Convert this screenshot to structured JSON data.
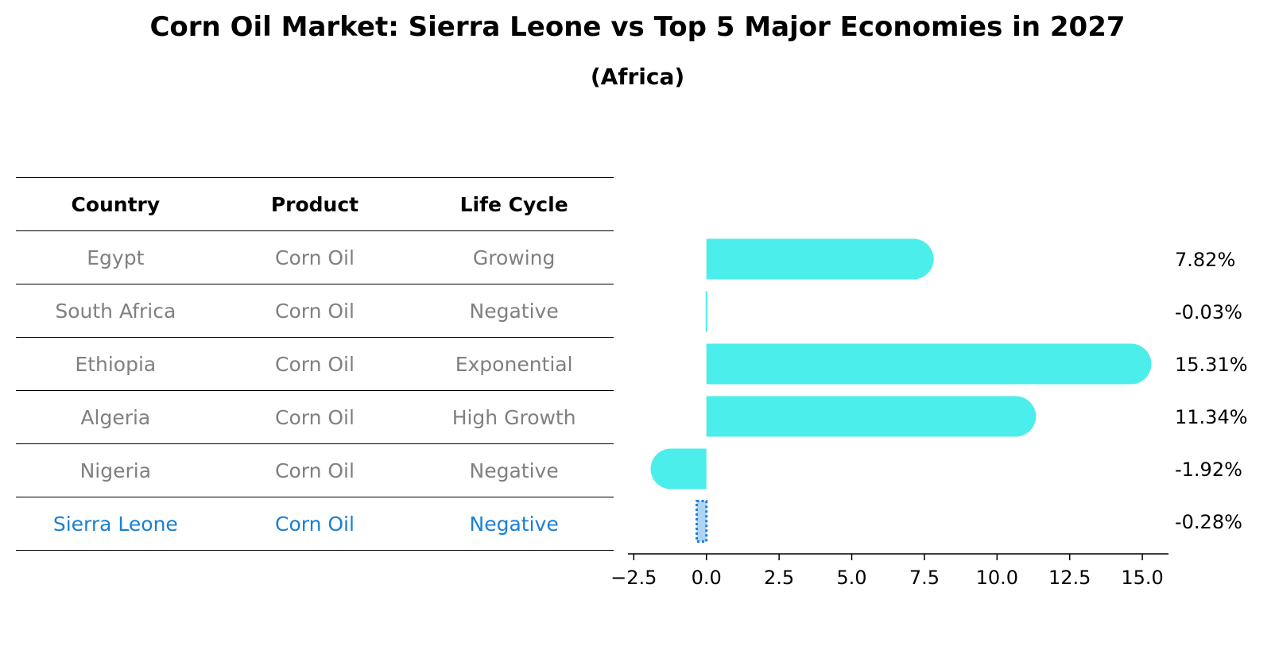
{
  "title": "Corn Oil Market: Sierra Leone vs Top 5 Major Economies in 2027",
  "subtitle": "(Africa)",
  "table": {
    "headers": [
      "Country",
      "Product",
      "Life Cycle"
    ],
    "rows": [
      [
        "Egypt",
        "Corn Oil",
        "Growing"
      ],
      [
        "South Africa",
        "Corn Oil",
        "Negative"
      ],
      [
        "Ethiopia",
        "Corn Oil",
        "Exponential"
      ],
      [
        "Algeria",
        "Corn Oil",
        "High Growth"
      ],
      [
        "Nigeria",
        "Corn Oil",
        "Negative"
      ],
      [
        "Sierra Leone",
        "Corn Oil",
        "Negative"
      ]
    ],
    "highlight_row": 5
  },
  "chart_data": {
    "type": "bar",
    "orientation": "horizontal",
    "categories": [
      "Egypt",
      "South Africa",
      "Ethiopia",
      "Algeria",
      "Nigeria",
      "Sierra Leone"
    ],
    "values": [
      7.82,
      -0.03,
      15.31,
      11.34,
      -1.92,
      -0.28
    ],
    "labels": [
      "7.82%",
      "-0.03%",
      "15.31%",
      "11.34%",
      "-1.92%",
      "-0.28%"
    ],
    "xlim": [
      -2.7,
      15.9
    ],
    "xticks": [
      -2.5,
      0.0,
      2.5,
      5.0,
      7.5,
      10.0,
      12.5,
      15.0
    ],
    "xtick_labels": [
      "−2.5",
      "0.0",
      "2.5",
      "5.0",
      "7.5",
      "10.0",
      "12.5",
      "15.0"
    ],
    "bar_color": "#4beeea",
    "highlight_color": "#1a80e0",
    "highlight_index": 5
  }
}
